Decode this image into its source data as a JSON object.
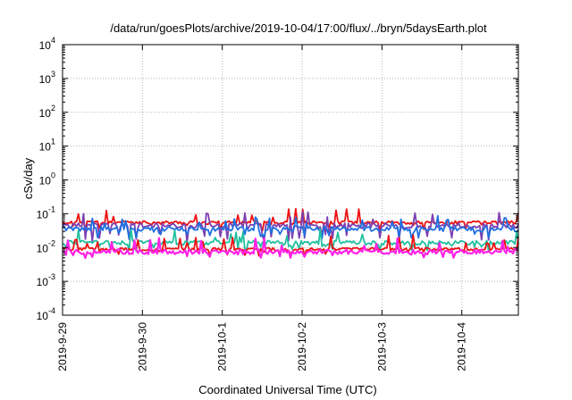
{
  "chart_data": {
    "type": "line",
    "title": "/data/run/goesPlots/archive/2019-10-04/17:00/flux/../bryn/5daysEarth.plot",
    "xlabel": "Coordinated Universal Time (UTC)",
    "ylabel": "cSv/day",
    "yscale": "log",
    "ylim": [
      0.0001,
      10000
    ],
    "xlim": [
      "2019-09-29 00:00",
      "2019-10-04 17:00"
    ],
    "y_ticks": [
      {
        "base": "10",
        "exp": "-4",
        "value": 0.0001
      },
      {
        "base": "10",
        "exp": "-3",
        "value": 0.001
      },
      {
        "base": "10",
        "exp": "-2",
        "value": 0.01
      },
      {
        "base": "10",
        "exp": "-1",
        "value": 0.1
      },
      {
        "base": "10",
        "exp": "0",
        "value": 1
      },
      {
        "base": "10",
        "exp": "1",
        "value": 10
      },
      {
        "base": "10",
        "exp": "2",
        "value": 100
      },
      {
        "base": "10",
        "exp": "3",
        "value": 1000
      },
      {
        "base": "10",
        "exp": "4",
        "value": 10000
      }
    ],
    "x_ticks": [
      {
        "label": "2019-9-29",
        "day": 0
      },
      {
        "label": "2019-9-30",
        "day": 1
      },
      {
        "label": "2019-10-1",
        "day": 2
      },
      {
        "label": "2019-10-2",
        "day": 3
      },
      {
        "label": "2019-10-3",
        "day": 4
      },
      {
        "label": "2019-10-4",
        "day": 5
      }
    ],
    "grid": true,
    "legend": "none",
    "series": [
      {
        "color": "#ee1111",
        "base": 0.055,
        "spread": 0.12,
        "dip": 0.045,
        "jitter": 0.3,
        "seed": 11
      },
      {
        "color": "#7b3fb0",
        "base": 0.045,
        "spread": 0.18,
        "dip": 0.02,
        "jitter": 0.5,
        "seed": 23
      },
      {
        "color": "#1e6fe0",
        "base": 0.036,
        "spread": 0.15,
        "dip": 0.025,
        "jitter": 0.5,
        "seed": 37
      },
      {
        "color": "#20c0a0",
        "base": 0.014,
        "spread": 0.15,
        "dip": 0.011,
        "jitter": 0.6,
        "seed": 51
      },
      {
        "color": "#ee1111",
        "base": 0.009,
        "spread": 0.1,
        "dip": 0.008,
        "jitter": 0.5,
        "seed": 67
      },
      {
        "color": "#ff22e6",
        "base": 0.0075,
        "spread": 0.15,
        "dip": 0.007,
        "jitter": 0.9,
        "seed": 83
      }
    ]
  }
}
